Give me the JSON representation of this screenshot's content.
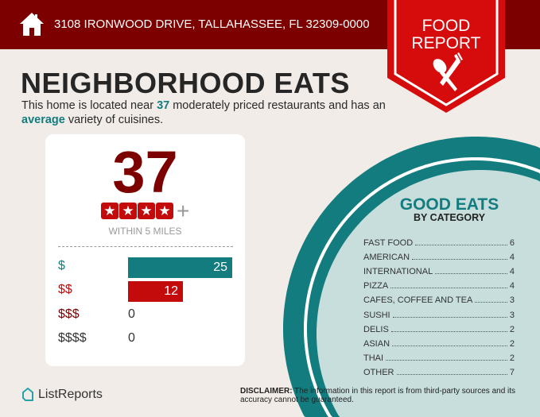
{
  "header": {
    "address": "3108 IRONWOOD DRIVE, TALLAHASSEE, FL 32309-0000",
    "badge_line1": "FOOD",
    "badge_line2": "REPORT"
  },
  "title": "NEIGHBORHOOD EATS",
  "subtitle": {
    "pre": "This home is located near ",
    "count": "37",
    "mid": " moderately priced restaurants and has an ",
    "variety": "average",
    "post": " variety of cuisines."
  },
  "summary": {
    "total": "37",
    "stars": 4,
    "plus": "+",
    "radius": "WITHIN 5 MILES"
  },
  "price": [
    {
      "label": "$",
      "value": "25",
      "color": "#127c7f"
    },
    {
      "label": "$$",
      "value": "12",
      "color": "#c30b0b"
    },
    {
      "label": "$$$",
      "value": "0",
      "color": "#7d0000"
    },
    {
      "label": "$$$$",
      "value": "0",
      "color": "#333333"
    }
  ],
  "categories": {
    "title": "GOOD EATS",
    "subtitle": "BY CATEGORY",
    "items": [
      {
        "name": "FAST FOOD",
        "count": "6"
      },
      {
        "name": "AMERICAN",
        "count": "4"
      },
      {
        "name": "INTERNATIONAL",
        "count": "4"
      },
      {
        "name": "PIZZA",
        "count": "4"
      },
      {
        "name": "CAFES, COFFEE AND TEA",
        "count": "3"
      },
      {
        "name": "SUSHI",
        "count": "3"
      },
      {
        "name": "DELIS",
        "count": "2"
      },
      {
        "name": "ASIAN",
        "count": "2"
      },
      {
        "name": "THAI",
        "count": "2"
      },
      {
        "name": "OTHER",
        "count": "7"
      }
    ]
  },
  "footer": {
    "logo": "ListReports",
    "disclaimer_label": "DISCLAIMER:",
    "disclaimer": " The information in this report is from third-party sources and its accuracy cannot be guaranteed."
  },
  "colors": {
    "header": "#7d0000",
    "accent_red": "#c30b0b",
    "teal": "#127c7f",
    "circle_fill": "#c7dedc"
  }
}
